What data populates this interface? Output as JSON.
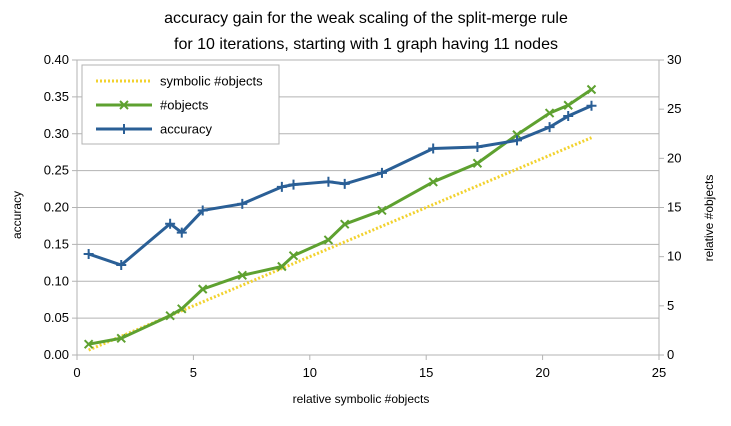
{
  "chart_data": {
    "type": "line",
    "title": "accuracy gain for the weak scaling of the split-merge rule",
    "subtitle": "for 10 iterations, starting with 1 graph having 11 nodes",
    "xlabel": "relative symbolic #objects",
    "ylabel": "accuracy",
    "y2label": "relative #objects",
    "xlim": [
      0,
      25
    ],
    "ylim": [
      0,
      0.4
    ],
    "y2lim": [
      0,
      30
    ],
    "xticks": [
      "0",
      "5",
      "10",
      "15",
      "20",
      "25"
    ],
    "yticks": [
      "0.00",
      "0.05",
      "0.10",
      "0.15",
      "0.20",
      "0.25",
      "0.30",
      "0.35",
      "0.40"
    ],
    "y2ticks": [
      "0",
      "5",
      "10",
      "15",
      "20",
      "25",
      "30"
    ],
    "grid": "horizontal",
    "legend_position": "top-left",
    "series": [
      {
        "name": "symbolic #objects",
        "axis": "right",
        "style": "dotted",
        "color": "#f2d22e",
        "marker": "none",
        "x": [
          0.5,
          1.9,
          4.0,
          4.5,
          5.4,
          7.1,
          8.8,
          9.3,
          10.8,
          11.5,
          13.1,
          15.3,
          17.2,
          18.9,
          20.3,
          21.1,
          22.1
        ],
        "y": [
          0.5,
          1.9,
          4.0,
          4.5,
          5.4,
          7.1,
          8.8,
          9.3,
          10.8,
          11.5,
          13.1,
          15.3,
          17.2,
          18.9,
          20.3,
          21.1,
          22.1
        ]
      },
      {
        "name": "#objects",
        "axis": "right",
        "style": "solid",
        "color": "#5ea130",
        "marker": "x",
        "x": [
          0.5,
          1.9,
          4.0,
          4.5,
          5.4,
          7.1,
          8.8,
          9.3,
          10.8,
          11.5,
          13.1,
          15.3,
          17.2,
          18.9,
          20.3,
          21.1,
          22.1
        ],
        "y": [
          1.1,
          1.7,
          4.0,
          4.7,
          6.7,
          8.1,
          9.0,
          10.1,
          11.7,
          13.3,
          14.7,
          17.6,
          19.5,
          22.4,
          24.6,
          25.4,
          27.0
        ]
      },
      {
        "name": "accuracy",
        "axis": "left",
        "style": "solid",
        "color": "#2a5f96",
        "marker": "+",
        "x": [
          0.5,
          1.9,
          4.0,
          4.5,
          5.4,
          7.1,
          8.8,
          9.3,
          10.8,
          11.5,
          13.1,
          15.3,
          17.2,
          18.9,
          20.3,
          21.1,
          22.1
        ],
        "y": [
          0.137,
          0.122,
          0.178,
          0.166,
          0.196,
          0.205,
          0.228,
          0.231,
          0.235,
          0.232,
          0.247,
          0.28,
          0.282,
          0.291,
          0.309,
          0.324,
          0.338
        ]
      }
    ]
  }
}
